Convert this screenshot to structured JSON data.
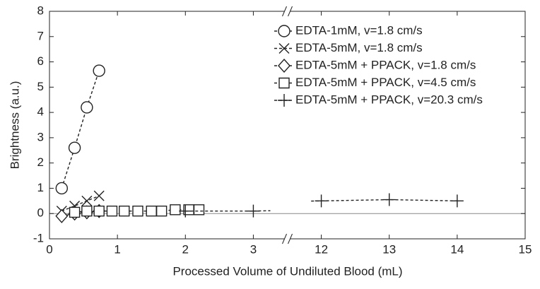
{
  "chart_data": {
    "type": "line",
    "xlabel": "Processed Volume of Undiluted Blood (mL)",
    "ylabel": "Brightness (a.u.)",
    "xlim": [
      0,
      15
    ],
    "ylim": [
      -1,
      8
    ],
    "xbreak": [
      3.5,
      11.5
    ],
    "xticks": [
      0,
      1,
      2,
      3,
      12,
      13,
      14,
      15
    ],
    "yticks": [
      -1,
      0,
      1,
      2,
      3,
      4,
      5,
      6,
      7,
      8
    ],
    "legend": "upper right",
    "series": [
      {
        "name": "EDTA-1mM, v=1.8 cm/s",
        "color": "#222",
        "marker": "circle",
        "x": [
          0.18,
          0.37,
          0.55,
          0.73
        ],
        "values": [
          1.0,
          2.6,
          4.2,
          5.65
        ]
      },
      {
        "name": "EDTA-5mM, v=1.8 cm/s",
        "color": "#222",
        "marker": "x",
        "x": [
          0.18,
          0.37,
          0.55,
          0.73
        ],
        "values": [
          0.1,
          0.3,
          0.5,
          0.7
        ]
      },
      {
        "name": "EDTA-5mM + PPACK, v=1.8 cm/s",
        "color": "#222",
        "marker": "diamond",
        "x": [
          0.18,
          0.37,
          0.55,
          0.73
        ],
        "values": [
          -0.1,
          0.0,
          0.05,
          0.1
        ]
      },
      {
        "name": "EDTA-5mM + PPACK, v=4.5 cm/s",
        "color": "#222",
        "marker": "square",
        "x": [
          0.37,
          0.55,
          0.73,
          0.92,
          1.1,
          1.3,
          1.5,
          1.65,
          1.85,
          2.05,
          2.2
        ],
        "values": [
          0.05,
          0.1,
          0.1,
          0.1,
          0.1,
          0.1,
          0.1,
          0.1,
          0.15,
          0.15,
          0.15
        ]
      },
      {
        "name": "EDTA-5mM + PPACK, v=20.3 cm/s",
        "color": "#222",
        "marker": "plus",
        "x": [
          2,
          3,
          12,
          13,
          14
        ],
        "values": [
          0.1,
          0.1,
          0.5,
          0.55,
          0.5
        ]
      }
    ]
  }
}
